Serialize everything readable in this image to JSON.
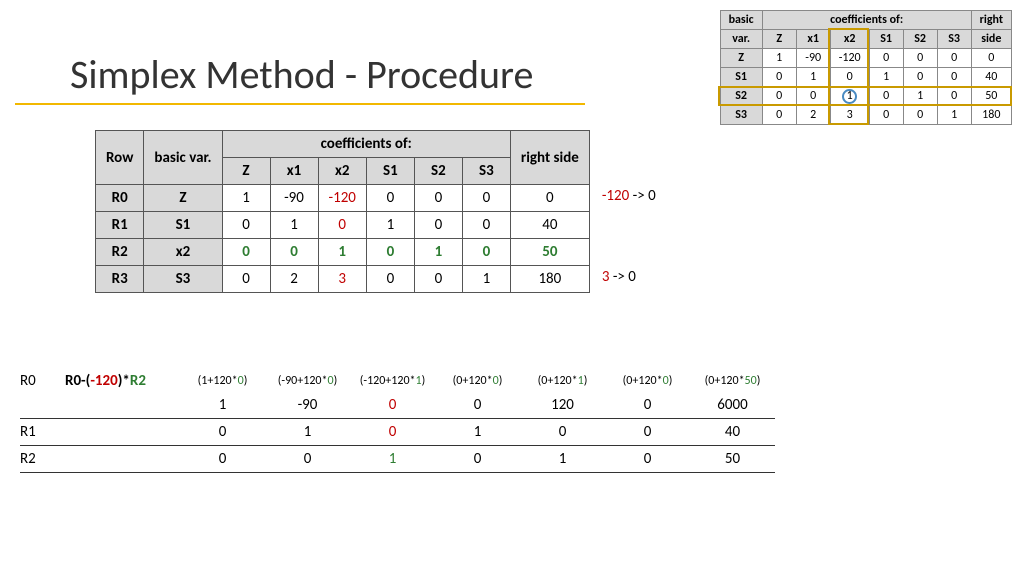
{
  "title": "Simplex Method - Procedure",
  "colors": {
    "accent": "#f2b800",
    "pivot_border": "#c99a00",
    "circle": "#4a8bc2",
    "red": "#c00000",
    "green": "#2e7d32",
    "header_bg": "#d9d9d9"
  },
  "small_tableau": {
    "corner1": "basic",
    "corner2": "var.",
    "coeff_hdr": "coefficients of:",
    "rhs_hdr1": "right",
    "rhs_hdr2": "side",
    "columns": [
      "Z",
      "x1",
      "x2",
      "S1",
      "S2",
      "S3"
    ],
    "rows": [
      {
        "bv": "Z",
        "c": [
          1,
          -90,
          -120,
          0,
          0,
          0
        ],
        "rhs": 0
      },
      {
        "bv": "S1",
        "c": [
          0,
          1,
          0,
          1,
          0,
          0
        ],
        "rhs": 40
      },
      {
        "bv": "S2",
        "c": [
          0,
          0,
          1,
          0,
          1,
          0
        ],
        "rhs": 50
      },
      {
        "bv": "S3",
        "c": [
          0,
          2,
          3,
          0,
          0,
          1
        ],
        "rhs": 180
      }
    ],
    "pivot_col_index": 2,
    "pivot_row_index": 2
  },
  "main_tableau": {
    "row_hdr": "Row",
    "bv_hdr": "basic var.",
    "coeff_hdr": "coefficients of:",
    "rhs_hdr": "right side",
    "columns": [
      "Z",
      "x1",
      "x2",
      "S1",
      "S2",
      "S3"
    ],
    "rows": [
      {
        "row": "R0",
        "bv": "Z",
        "c": [
          "1",
          "-90",
          "-120",
          "0",
          "0",
          "0"
        ],
        "rhs": "0",
        "styles": {
          "2": "red"
        }
      },
      {
        "row": "R1",
        "bv": "S1",
        "c": [
          "0",
          "1",
          "0",
          "1",
          "0",
          "0"
        ],
        "rhs": "40",
        "styles": {
          "2": "red"
        }
      },
      {
        "row": "R2",
        "bv": "x2",
        "c": [
          "0",
          "0",
          "1",
          "0",
          "1",
          "0"
        ],
        "rhs": "50",
        "row_style": "green"
      },
      {
        "row": "R3",
        "bv": "S3",
        "c": [
          "0",
          "2",
          "3",
          "0",
          "0",
          "1"
        ],
        "rhs": "180",
        "styles": {
          "2": "red"
        }
      }
    ],
    "annotations": [
      {
        "text_parts": [
          {
            "t": "-120",
            "cls": "red"
          },
          {
            "t": " -> 0"
          }
        ],
        "row": 0
      },
      {
        "text_parts": [
          {
            "t": "3",
            "cls": "red"
          },
          {
            "t": " -> 0"
          }
        ],
        "row": 3
      }
    ]
  },
  "calculations": {
    "header_label": "R0",
    "header_formula_parts": [
      {
        "t": "R0-("
      },
      {
        "t": "-120",
        "cls": "red"
      },
      {
        "t": ")*"
      },
      {
        "t": "R2",
        "cls": "greenplain"
      }
    ],
    "header_exprs": [
      "(1+120*0)",
      "(-90+120*0)",
      "(-120+120*1)",
      "(0+120*0)",
      "(0+120*1)",
      "(0+120*0)",
      "(0+120*50)"
    ],
    "header_expr_green_idx": [
      2,
      7,
      12,
      17,
      22,
      27,
      32
    ],
    "rows": [
      {
        "label": "",
        "formula": "",
        "cells": [
          "1",
          "-90",
          "0",
          "0",
          "120",
          "0",
          "6000"
        ],
        "styles": {
          "2": "red"
        }
      },
      {
        "label": "R1",
        "formula": "",
        "cells": [
          "0",
          "1",
          "0",
          "1",
          "0",
          "0",
          "40"
        ],
        "styles": {
          "2": "red"
        }
      },
      {
        "label": "R2",
        "formula": "",
        "cells": [
          "0",
          "0",
          "1",
          "0",
          "1",
          "0",
          "50"
        ],
        "styles": {
          "2": "greenplain"
        }
      }
    ]
  }
}
